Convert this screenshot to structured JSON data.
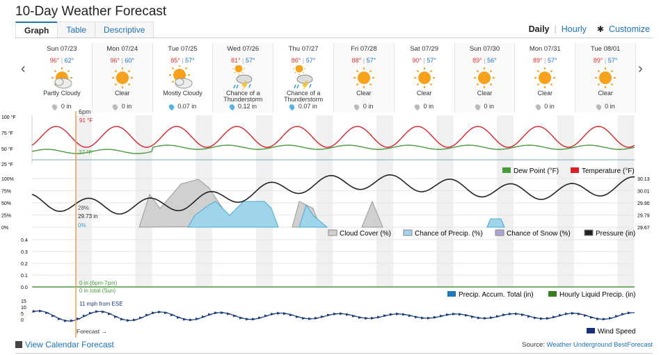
{
  "page_title": "10-Day Weather Forecast",
  "tabs": [
    {
      "label": "Graph",
      "active": true
    },
    {
      "label": "Table",
      "active": false
    },
    {
      "label": "Descriptive",
      "active": false
    }
  ],
  "view_modes": {
    "daily": "Daily",
    "hourly": "Hourly",
    "customize": "Customize"
  },
  "days": [
    {
      "date": "Sun 07/23",
      "hi": "96°",
      "lo": "62°",
      "icon": "partly-cloudy-icon",
      "condition": "Partly Cloudy",
      "precip": "0 in"
    },
    {
      "date": "Mon 07/24",
      "hi": "96°",
      "lo": "60°",
      "icon": "clear-icon",
      "condition": "Clear",
      "precip": "0 in"
    },
    {
      "date": "Tue 07/25",
      "hi": "85°",
      "lo": "57°",
      "icon": "mostly-cloudy-icon",
      "condition": "Mostly Cloudy",
      "precip": "0.07 in"
    },
    {
      "date": "Wed 07/26",
      "hi": "81°",
      "lo": "57°",
      "icon": "thunderstorm-icon",
      "condition": "Chance of a Thunderstorm",
      "precip": "0.12 in"
    },
    {
      "date": "Thu 07/27",
      "hi": "86°",
      "lo": "57°",
      "icon": "thunderstorm-icon",
      "condition": "Chance of a Thunderstorm",
      "precip": "0.07 in"
    },
    {
      "date": "Fri 07/28",
      "hi": "88°",
      "lo": "57°",
      "icon": "clear-icon",
      "condition": "Clear",
      "precip": "0 in"
    },
    {
      "date": "Sat 07/29",
      "hi": "90°",
      "lo": "57°",
      "icon": "clear-icon",
      "condition": "Clear",
      "precip": "0 in"
    },
    {
      "date": "Sun 07/30",
      "hi": "89°",
      "lo": "56°",
      "icon": "clear-icon",
      "condition": "Clear",
      "precip": "0 in"
    },
    {
      "date": "Mon 07/31",
      "hi": "89°",
      "lo": "57°",
      "icon": "clear-icon",
      "condition": "Clear",
      "precip": "0 in"
    },
    {
      "date": "Tue 08/01",
      "hi": "89°",
      "lo": "57°",
      "icon": "clear-icon",
      "condition": "Clear",
      "precip": "0 in"
    }
  ],
  "temp_chart": {
    "cursor_time": "6pm",
    "temp_label": "91 °F",
    "dew_label": "37 °F",
    "y_ticks": [
      "100 °F",
      "75 °F",
      "50 °F",
      "25 °F"
    ],
    "legend": [
      "Dew Point (°F)",
      "Temperature (°F)"
    ],
    "colors": {
      "temp": "#d9212b",
      "dew": "#4a9a3c"
    }
  },
  "sky_chart": {
    "y_ticks_left": [
      "100%",
      "75%",
      "50%",
      "25%",
      "0%"
    ],
    "y_ticks_right": [
      "30.13",
      "30.01",
      "29.90",
      "29.79",
      "29.67"
    ],
    "cloud_label": "28%",
    "pressure_label": "29.73 in",
    "precip_label": "0%",
    "legend": [
      "Cloud Cover (%)",
      "Chance of Precip. (%)",
      "Chance of Snow (%)",
      "Pressure (in)"
    ]
  },
  "precip_chart": {
    "y_ticks": [
      "0.4",
      "0.3",
      "0.2",
      "0.1",
      "0.0"
    ],
    "hourly_label": "0 in (6pm-7pm)",
    "total_label": "0 in total (Sun)",
    "legend": [
      "Precip. Accum. Total (in)",
      "Hourly Liquid Precip. (in)"
    ]
  },
  "wind_chart": {
    "y_ticks": [
      "15",
      "10",
      "5",
      "0"
    ],
    "wind_label": "11 mph from ESE",
    "forecast_label": "Forecast →",
    "legend": [
      "Wind Speed"
    ]
  },
  "footer": {
    "calendar_link": "View Calendar Forecast",
    "source_prefix": "Source:",
    "source_link": "Weather Underground BestForecast"
  }
}
